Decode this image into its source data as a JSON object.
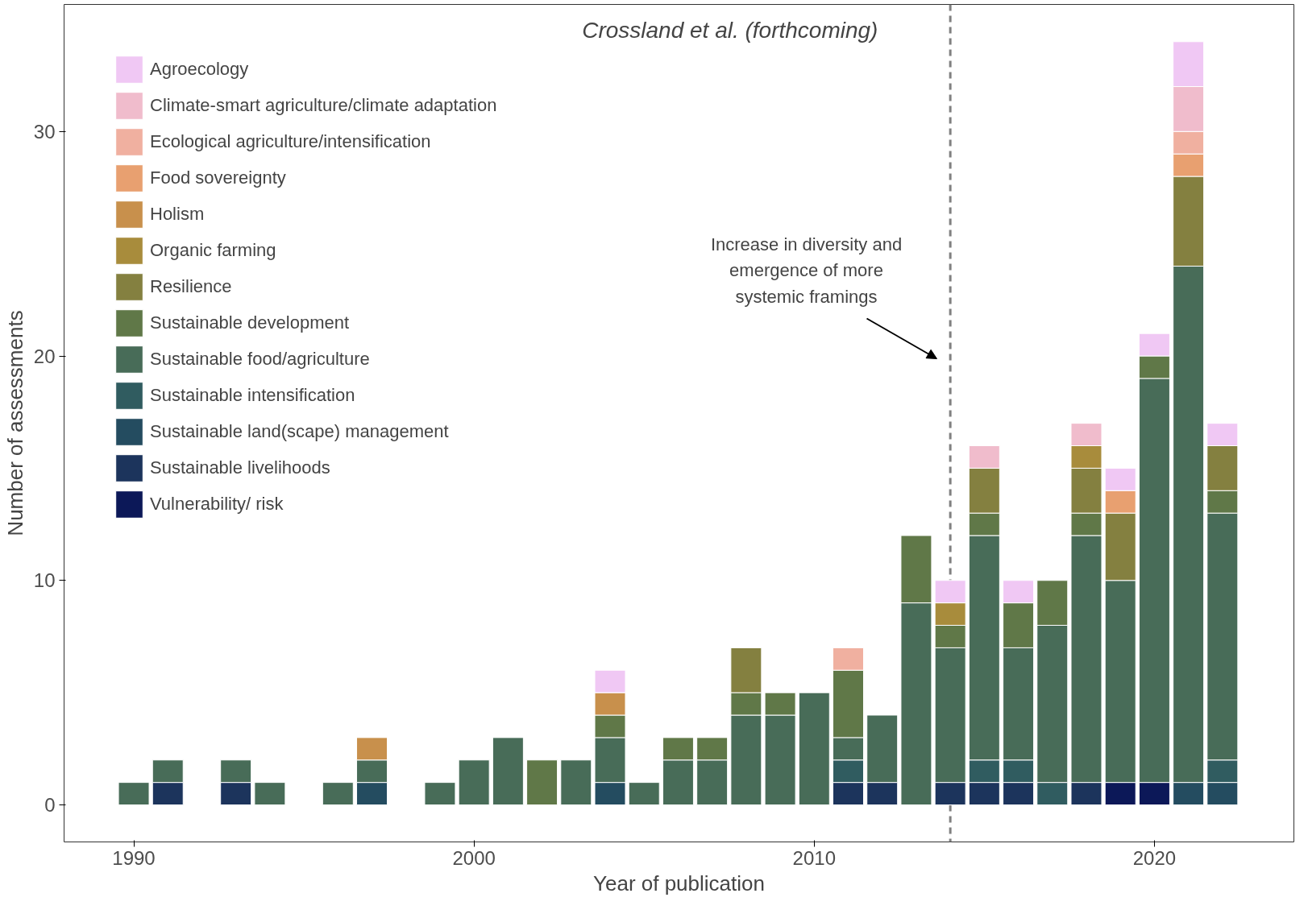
{
  "chart_data": {
    "type": "bar",
    "stacked": true,
    "title": "Crossland et al. (forthcoming)",
    "xlabel": "Year of publication",
    "ylabel": "Number of assessments",
    "x": [
      1990,
      1991,
      1993,
      1994,
      1996,
      1997,
      1999,
      2000,
      2001,
      2002,
      2003,
      2004,
      2005,
      2006,
      2007,
      2008,
      2009,
      2010,
      2011,
      2012,
      2013,
      2014,
      2015,
      2016,
      2017,
      2018,
      2019,
      2020,
      2021,
      2022
    ],
    "series": [
      {
        "name": "Vulnerability/ risk",
        "color": "#0c1858",
        "values": [
          null,
          null,
          null,
          null,
          null,
          null,
          null,
          null,
          null,
          null,
          null,
          null,
          null,
          null,
          null,
          null,
          null,
          null,
          null,
          null,
          null,
          null,
          null,
          null,
          null,
          null,
          1,
          1,
          null,
          null
        ]
      },
      {
        "name": "Sustainable livelihoods",
        "color": "#1c345c",
        "values": [
          null,
          1,
          1,
          null,
          null,
          null,
          null,
          null,
          null,
          null,
          null,
          null,
          null,
          null,
          null,
          null,
          null,
          null,
          1,
          1,
          null,
          1,
          1,
          1,
          null,
          1,
          null,
          null,
          null,
          null
        ]
      },
      {
        "name": "Sustainable land(scape) management",
        "color": "#244c60",
        "values": [
          null,
          null,
          null,
          null,
          null,
          1,
          null,
          null,
          null,
          null,
          null,
          1,
          null,
          null,
          null,
          null,
          null,
          null,
          null,
          null,
          null,
          null,
          null,
          null,
          null,
          null,
          null,
          null,
          1,
          1
        ]
      },
      {
        "name": "Sustainable intensification",
        "color": "#305c60",
        "values": [
          null,
          null,
          null,
          null,
          null,
          null,
          null,
          null,
          null,
          null,
          null,
          null,
          null,
          null,
          null,
          null,
          null,
          null,
          1,
          null,
          null,
          null,
          1,
          1,
          1,
          null,
          null,
          null,
          null,
          1
        ]
      },
      {
        "name": "Sustainable food/agriculture",
        "color": "#486c58",
        "values": [
          1,
          1,
          1,
          1,
          1,
          1,
          1,
          2,
          3,
          null,
          2,
          2,
          1,
          2,
          2,
          4,
          4,
          5,
          1,
          3,
          9,
          6,
          10,
          5,
          7,
          11,
          9,
          18,
          23,
          11
        ]
      },
      {
        "name": "Sustainable development",
        "color": "#607848",
        "values": [
          null,
          null,
          null,
          null,
          null,
          null,
          null,
          null,
          null,
          2,
          null,
          1,
          null,
          1,
          1,
          1,
          1,
          null,
          3,
          null,
          3,
          1,
          1,
          2,
          2,
          1,
          null,
          1,
          null,
          1
        ]
      },
      {
        "name": "Resilience",
        "color": "#848040",
        "values": [
          null,
          null,
          null,
          null,
          null,
          null,
          null,
          null,
          null,
          null,
          null,
          null,
          null,
          null,
          null,
          2,
          null,
          null,
          null,
          null,
          null,
          null,
          2,
          null,
          null,
          2,
          3,
          null,
          4,
          2
        ]
      },
      {
        "name": "Organic farming",
        "color": "#a88c3c",
        "values": [
          null,
          null,
          null,
          null,
          null,
          null,
          null,
          null,
          null,
          null,
          null,
          null,
          null,
          null,
          null,
          null,
          null,
          null,
          null,
          null,
          null,
          1,
          null,
          null,
          null,
          1,
          null,
          null,
          null,
          null
        ]
      },
      {
        "name": "Holism",
        "color": "#c8904c",
        "values": [
          null,
          null,
          null,
          null,
          null,
          1,
          null,
          null,
          null,
          null,
          null,
          1,
          null,
          null,
          null,
          null,
          null,
          null,
          null,
          null,
          null,
          null,
          null,
          null,
          null,
          null,
          null,
          null,
          null,
          null
        ]
      },
      {
        "name": "Food sovereignty",
        "color": "#e8a070",
        "values": [
          null,
          null,
          null,
          null,
          null,
          null,
          null,
          null,
          null,
          null,
          null,
          null,
          null,
          null,
          null,
          null,
          null,
          null,
          null,
          null,
          null,
          null,
          null,
          null,
          null,
          null,
          1,
          null,
          1,
          null
        ]
      },
      {
        "name": "Ecological agriculture/intensification",
        "color": "#f0b0a0",
        "values": [
          null,
          null,
          null,
          null,
          null,
          null,
          null,
          null,
          null,
          null,
          null,
          null,
          null,
          null,
          null,
          null,
          null,
          null,
          1,
          null,
          null,
          null,
          null,
          null,
          null,
          null,
          null,
          null,
          1,
          null
        ]
      },
      {
        "name": "Climate-smart agriculture/climate adaptation",
        "color": "#f0bccc",
        "values": [
          null,
          null,
          null,
          null,
          null,
          null,
          null,
          null,
          null,
          null,
          null,
          null,
          null,
          null,
          null,
          null,
          null,
          null,
          null,
          null,
          null,
          null,
          1,
          null,
          null,
          1,
          null,
          null,
          2,
          null
        ]
      },
      {
        "name": "Agroecology",
        "color": "#f0c8f4",
        "values": [
          null,
          null,
          null,
          null,
          null,
          null,
          null,
          null,
          null,
          null,
          null,
          1,
          null,
          null,
          null,
          null,
          null,
          null,
          null,
          null,
          null,
          1,
          null,
          1,
          null,
          null,
          1,
          1,
          2,
          1
        ]
      }
    ],
    "xlim": [
      1987.95,
      2024.1
    ],
    "ylim": [
      -1.65,
      35.66
    ],
    "xticks": [
      1990,
      2000,
      2010,
      2020
    ],
    "yticks": [
      0,
      10,
      20,
      30
    ],
    "grid": false,
    "legend": "top left",
    "ref_lines": [
      {
        "axis": "x",
        "value": 2014,
        "color": "#808080",
        "line_style": "dashed"
      }
    ],
    "annotations": [
      "Increase in diversity and emergence of more systemic framings"
    ]
  }
}
